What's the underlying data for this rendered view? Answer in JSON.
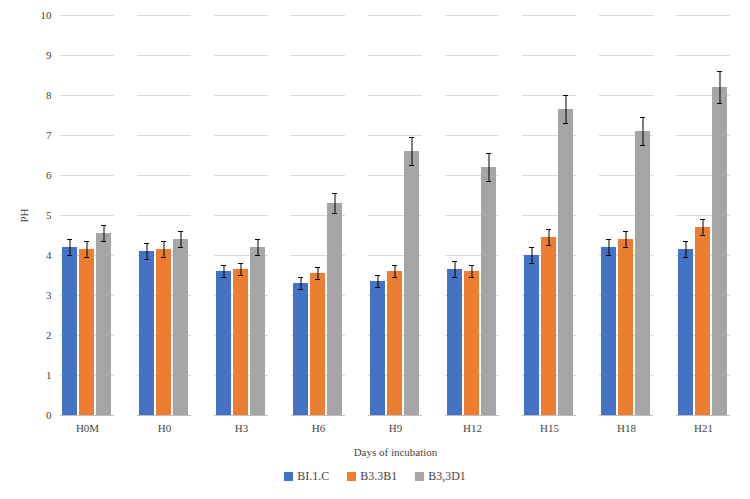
{
  "chart_data": {
    "type": "bar",
    "x_label": "Days of incubation",
    "y_label": "PH",
    "categories": [
      "H0M",
      "H0",
      "H3",
      "H6",
      "H9",
      "H12",
      "H15",
      "H18",
      "H21"
    ],
    "series": [
      {
        "name": "BI.1.C",
        "color": "#4472c4",
        "values": [
          4.2,
          4.1,
          3.6,
          3.3,
          3.35,
          3.65,
          4.0,
          4.2,
          4.15
        ],
        "errors": [
          0.2,
          0.2,
          0.15,
          0.15,
          0.15,
          0.2,
          0.2,
          0.2,
          0.2
        ]
      },
      {
        "name": "B3.3B1",
        "color": "#ed7d31",
        "values": [
          4.15,
          4.15,
          3.65,
          3.55,
          3.6,
          3.6,
          4.45,
          4.4,
          4.7
        ],
        "errors": [
          0.2,
          0.2,
          0.15,
          0.15,
          0.15,
          0.15,
          0.2,
          0.2,
          0.2
        ]
      },
      {
        "name": "B3,3D1",
        "color": "#a5a5a5",
        "values": [
          4.55,
          4.4,
          4.2,
          5.3,
          6.6,
          6.2,
          7.65,
          7.1,
          8.2
        ],
        "errors": [
          0.2,
          0.2,
          0.2,
          0.25,
          0.35,
          0.35,
          0.35,
          0.35,
          0.4
        ]
      }
    ],
    "ylim": [
      0,
      10
    ],
    "yticks": [
      0,
      1,
      2,
      3,
      4,
      5,
      6,
      7,
      8,
      9,
      10
    ],
    "grid": true,
    "legend": "bottom"
  }
}
